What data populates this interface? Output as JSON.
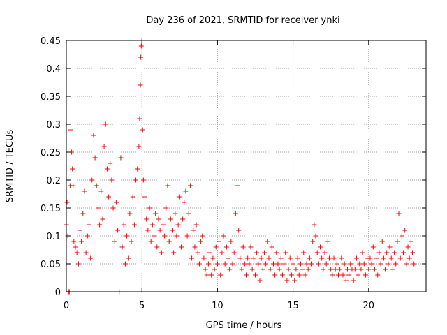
{
  "chart_data": {
    "type": "scatter",
    "title": "Day 236 of 2021, SRMTID for receiver ynki",
    "xlabel": "GPS time / hours",
    "ylabel": "SRMTID / TECUs",
    "xlim": [
      0,
      23.8
    ],
    "ylim": [
      0,
      0.45
    ],
    "x_ticks": [
      0,
      5,
      10,
      15,
      20
    ],
    "y_ticks": [
      0,
      0.05,
      0.1,
      0.15,
      0.2,
      0.25,
      0.3,
      0.35,
      0.4,
      0.45
    ],
    "x_tick_labels": [
      "0",
      "5",
      "10",
      "15",
      "20"
    ],
    "y_tick_labels": [
      "0",
      "0.05",
      "0.1",
      "0.15",
      "0.2",
      "0.25",
      "0.3",
      "0.35",
      "0.4",
      "0.45"
    ],
    "grid": true,
    "marker": "plus",
    "color": "#ff0000",
    "series": [
      {
        "name": "SRMTID",
        "points": [
          [
            0.0,
            0.12
          ],
          [
            0.05,
            0.16
          ],
          [
            0.1,
            0.1
          ],
          [
            0.15,
            0.0
          ],
          [
            0.2,
            0.0
          ],
          [
            0.25,
            0.19
          ],
          [
            0.3,
            0.29
          ],
          [
            0.35,
            0.25
          ],
          [
            0.4,
            0.22
          ],
          [
            0.45,
            0.19
          ],
          [
            0.5,
            0.09
          ],
          [
            0.6,
            0.08
          ],
          [
            0.7,
            0.07
          ],
          [
            0.8,
            0.05
          ],
          [
            0.9,
            0.11
          ],
          [
            1.0,
            0.09
          ],
          [
            1.1,
            0.14
          ],
          [
            1.2,
            0.18
          ],
          [
            1.3,
            0.07
          ],
          [
            1.4,
            0.1
          ],
          [
            1.5,
            0.12
          ],
          [
            1.6,
            0.06
          ],
          [
            1.7,
            0.2
          ],
          [
            1.8,
            0.28
          ],
          [
            1.9,
            0.24
          ],
          [
            2.0,
            0.19
          ],
          [
            2.1,
            0.15
          ],
          [
            2.2,
            0.12
          ],
          [
            2.3,
            0.18
          ],
          [
            2.4,
            0.13
          ],
          [
            2.5,
            0.26
          ],
          [
            2.6,
            0.3
          ],
          [
            2.7,
            0.22
          ],
          [
            2.8,
            0.17
          ],
          [
            2.9,
            0.23
          ],
          [
            3.0,
            0.2
          ],
          [
            3.1,
            0.15
          ],
          [
            3.2,
            0.09
          ],
          [
            3.3,
            0.16
          ],
          [
            3.4,
            0.11
          ],
          [
            3.5,
            0.0
          ],
          [
            3.6,
            0.24
          ],
          [
            3.7,
            0.08
          ],
          [
            3.8,
            0.12
          ],
          [
            3.9,
            0.05
          ],
          [
            4.0,
            0.1
          ],
          [
            4.1,
            0.06
          ],
          [
            4.2,
            0.14
          ],
          [
            4.3,
            0.09
          ],
          [
            4.4,
            0.17
          ],
          [
            4.5,
            0.12
          ],
          [
            4.6,
            0.2
          ],
          [
            4.7,
            0.22
          ],
          [
            4.8,
            0.26
          ],
          [
            4.85,
            0.31
          ],
          [
            4.9,
            0.37
          ],
          [
            4.93,
            0.42
          ],
          [
            4.96,
            0.44
          ],
          [
            5.0,
            0.45
          ],
          [
            5.05,
            0.29
          ],
          [
            5.1,
            0.2
          ],
          [
            5.2,
            0.17
          ],
          [
            5.3,
            0.13
          ],
          [
            5.4,
            0.11
          ],
          [
            5.5,
            0.15
          ],
          [
            5.6,
            0.09
          ],
          [
            5.7,
            0.12
          ],
          [
            5.8,
            0.1
          ],
          [
            5.9,
            0.14
          ],
          [
            6.0,
            0.08
          ],
          [
            6.1,
            0.13
          ],
          [
            6.2,
            0.11
          ],
          [
            6.3,
            0.07
          ],
          [
            6.4,
            0.12
          ],
          [
            6.5,
            0.1
          ],
          [
            6.6,
            0.15
          ],
          [
            6.7,
            0.19
          ],
          [
            6.8,
            0.09
          ],
          [
            6.9,
            0.13
          ],
          [
            7.0,
            0.11
          ],
          [
            7.1,
            0.07
          ],
          [
            7.2,
            0.14
          ],
          [
            7.3,
            0.1
          ],
          [
            7.4,
            0.12
          ],
          [
            7.5,
            0.17
          ],
          [
            7.6,
            0.08
          ],
          [
            7.7,
            0.13
          ],
          [
            7.8,
            0.16
          ],
          [
            7.9,
            0.18
          ],
          [
            8.0,
            0.1
          ],
          [
            8.1,
            0.14
          ],
          [
            8.2,
            0.19
          ],
          [
            8.3,
            0.06
          ],
          [
            8.4,
            0.11
          ],
          [
            8.5,
            0.08
          ],
          [
            8.6,
            0.12
          ],
          [
            8.7,
            0.07
          ],
          [
            8.8,
            0.05
          ],
          [
            8.9,
            0.09
          ],
          [
            9.0,
            0.1
          ],
          [
            9.1,
            0.06
          ],
          [
            9.2,
            0.04
          ],
          [
            9.3,
            0.03
          ],
          [
            9.4,
            0.05
          ],
          [
            9.5,
            0.07
          ],
          [
            9.6,
            0.03
          ],
          [
            9.7,
            0.06
          ],
          [
            9.8,
            0.04
          ],
          [
            9.9,
            0.08
          ],
          [
            10.0,
            0.05
          ],
          [
            10.1,
            0.09
          ],
          [
            10.2,
            0.03
          ],
          [
            10.3,
            0.07
          ],
          [
            10.4,
            0.1
          ],
          [
            10.5,
            0.05
          ],
          [
            10.6,
            0.08
          ],
          [
            10.7,
            0.06
          ],
          [
            10.8,
            0.04
          ],
          [
            10.9,
            0.09
          ],
          [
            11.0,
            0.05
          ],
          [
            11.1,
            0.07
          ],
          [
            11.2,
            0.14
          ],
          [
            11.3,
            0.19
          ],
          [
            11.4,
            0.11
          ],
          [
            11.5,
            0.06
          ],
          [
            11.6,
            0.04
          ],
          [
            11.7,
            0.08
          ],
          [
            11.8,
            0.05
          ],
          [
            11.9,
            0.03
          ],
          [
            12.0,
            0.06
          ],
          [
            12.1,
            0.05
          ],
          [
            12.2,
            0.08
          ],
          [
            12.3,
            0.04
          ],
          [
            12.4,
            0.06
          ],
          [
            12.5,
            0.03
          ],
          [
            12.6,
            0.07
          ],
          [
            12.7,
            0.05
          ],
          [
            12.8,
            0.02
          ],
          [
            12.9,
            0.06
          ],
          [
            13.0,
            0.04
          ],
          [
            13.1,
            0.07
          ],
          [
            13.2,
            0.05
          ],
          [
            13.3,
            0.09
          ],
          [
            13.4,
            0.06
          ],
          [
            13.5,
            0.04
          ],
          [
            13.6,
            0.08
          ],
          [
            13.7,
            0.05
          ],
          [
            13.8,
            0.03
          ],
          [
            13.9,
            0.07
          ],
          [
            14.0,
            0.05
          ],
          [
            14.1,
            0.04
          ],
          [
            14.2,
            0.06
          ],
          [
            14.3,
            0.03
          ],
          [
            14.4,
            0.05
          ],
          [
            14.5,
            0.07
          ],
          [
            14.6,
            0.02
          ],
          [
            14.7,
            0.04
          ],
          [
            14.8,
            0.06
          ],
          [
            14.9,
            0.03
          ],
          [
            15.0,
            0.05
          ],
          [
            15.1,
            0.02
          ],
          [
            15.2,
            0.04
          ],
          [
            15.3,
            0.06
          ],
          [
            15.4,
            0.03
          ],
          [
            15.5,
            0.05
          ],
          [
            15.6,
            0.04
          ],
          [
            15.7,
            0.07
          ],
          [
            15.8,
            0.03
          ],
          [
            15.9,
            0.05
          ],
          [
            16.0,
            0.04
          ],
          [
            16.1,
            0.06
          ],
          [
            16.2,
            0.05
          ],
          [
            16.3,
            0.09
          ],
          [
            16.4,
            0.12
          ],
          [
            16.5,
            0.1
          ],
          [
            16.6,
            0.07
          ],
          [
            16.7,
            0.05
          ],
          [
            16.8,
            0.08
          ],
          [
            16.9,
            0.06
          ],
          [
            17.0,
            0.04
          ],
          [
            17.1,
            0.07
          ],
          [
            17.2,
            0.05
          ],
          [
            17.3,
            0.09
          ],
          [
            17.4,
            0.06
          ],
          [
            17.5,
            0.04
          ],
          [
            17.6,
            0.03
          ],
          [
            17.7,
            0.06
          ],
          [
            17.8,
            0.04
          ],
          [
            17.9,
            0.05
          ],
          [
            18.0,
            0.03
          ],
          [
            18.1,
            0.04
          ],
          [
            18.2,
            0.06
          ],
          [
            18.3,
            0.03
          ],
          [
            18.4,
            0.05
          ],
          [
            18.5,
            0.02
          ],
          [
            18.6,
            0.04
          ],
          [
            18.7,
            0.03
          ],
          [
            18.8,
            0.05
          ],
          [
            18.9,
            0.04
          ],
          [
            19.0,
            0.02
          ],
          [
            19.1,
            0.04
          ],
          [
            19.2,
            0.06
          ],
          [
            19.3,
            0.03
          ],
          [
            19.4,
            0.05
          ],
          [
            19.5,
            0.04
          ],
          [
            19.6,
            0.07
          ],
          [
            19.7,
            0.05
          ],
          [
            19.8,
            0.03
          ],
          [
            19.9,
            0.06
          ],
          [
            20.0,
            0.04
          ],
          [
            20.1,
            0.06
          ],
          [
            20.2,
            0.05
          ],
          [
            20.3,
            0.08
          ],
          [
            20.4,
            0.04
          ],
          [
            20.5,
            0.06
          ],
          [
            20.6,
            0.03
          ],
          [
            20.7,
            0.07
          ],
          [
            20.8,
            0.05
          ],
          [
            20.9,
            0.09
          ],
          [
            21.0,
            0.06
          ],
          [
            21.1,
            0.04
          ],
          [
            21.2,
            0.07
          ],
          [
            21.3,
            0.05
          ],
          [
            21.4,
            0.08
          ],
          [
            21.5,
            0.06
          ],
          [
            21.6,
            0.04
          ],
          [
            21.7,
            0.07
          ],
          [
            21.8,
            0.05
          ],
          [
            21.9,
            0.09
          ],
          [
            22.0,
            0.14
          ],
          [
            22.1,
            0.06
          ],
          [
            22.2,
            0.1
          ],
          [
            22.3,
            0.07
          ],
          [
            22.4,
            0.11
          ],
          [
            22.5,
            0.05
          ],
          [
            22.6,
            0.08
          ],
          [
            22.7,
            0.06
          ],
          [
            22.8,
            0.09
          ],
          [
            22.9,
            0.07
          ],
          [
            23.0,
            0.05
          ]
        ]
      }
    ]
  }
}
